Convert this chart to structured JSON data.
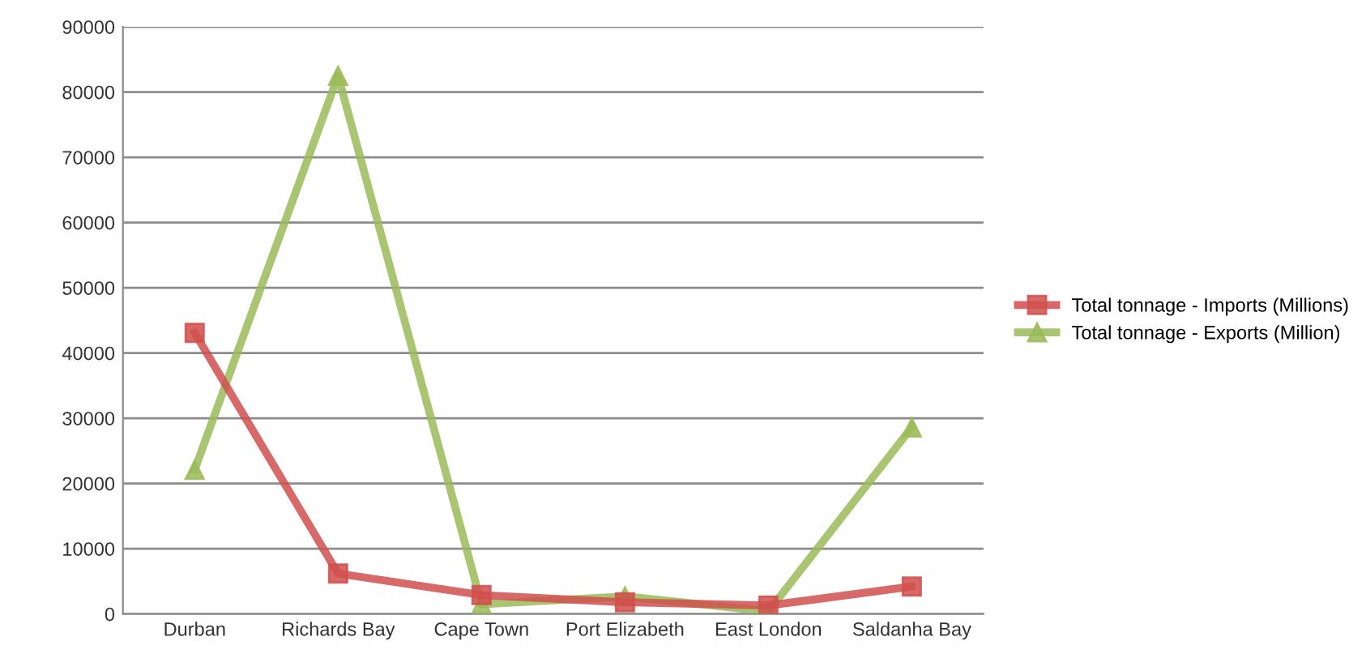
{
  "chart_data": {
    "type": "line",
    "categories": [
      "Durban",
      "Richards Bay",
      "Cape Town",
      "Port Elizabeth",
      "East London",
      "Saldanha Bay"
    ],
    "series": [
      {
        "name": "Total tonnage - Imports (Millions)",
        "color": "#d0504d",
        "marker": "square",
        "values": [
          43100,
          6200,
          2900,
          1800,
          1300,
          4200
        ]
      },
      {
        "name": "Total tonnage - Exports (Million)",
        "color": "#9bbb59",
        "marker": "triangle",
        "values": [
          22100,
          82500,
          1500,
          2700,
          400,
          28600
        ]
      }
    ],
    "ylim": [
      0,
      90000
    ],
    "yticks": [
      0,
      10000,
      20000,
      30000,
      40000,
      50000,
      60000,
      70000,
      80000,
      90000
    ],
    "grid": "y",
    "legend": "right",
    "line_style": "solid"
  }
}
